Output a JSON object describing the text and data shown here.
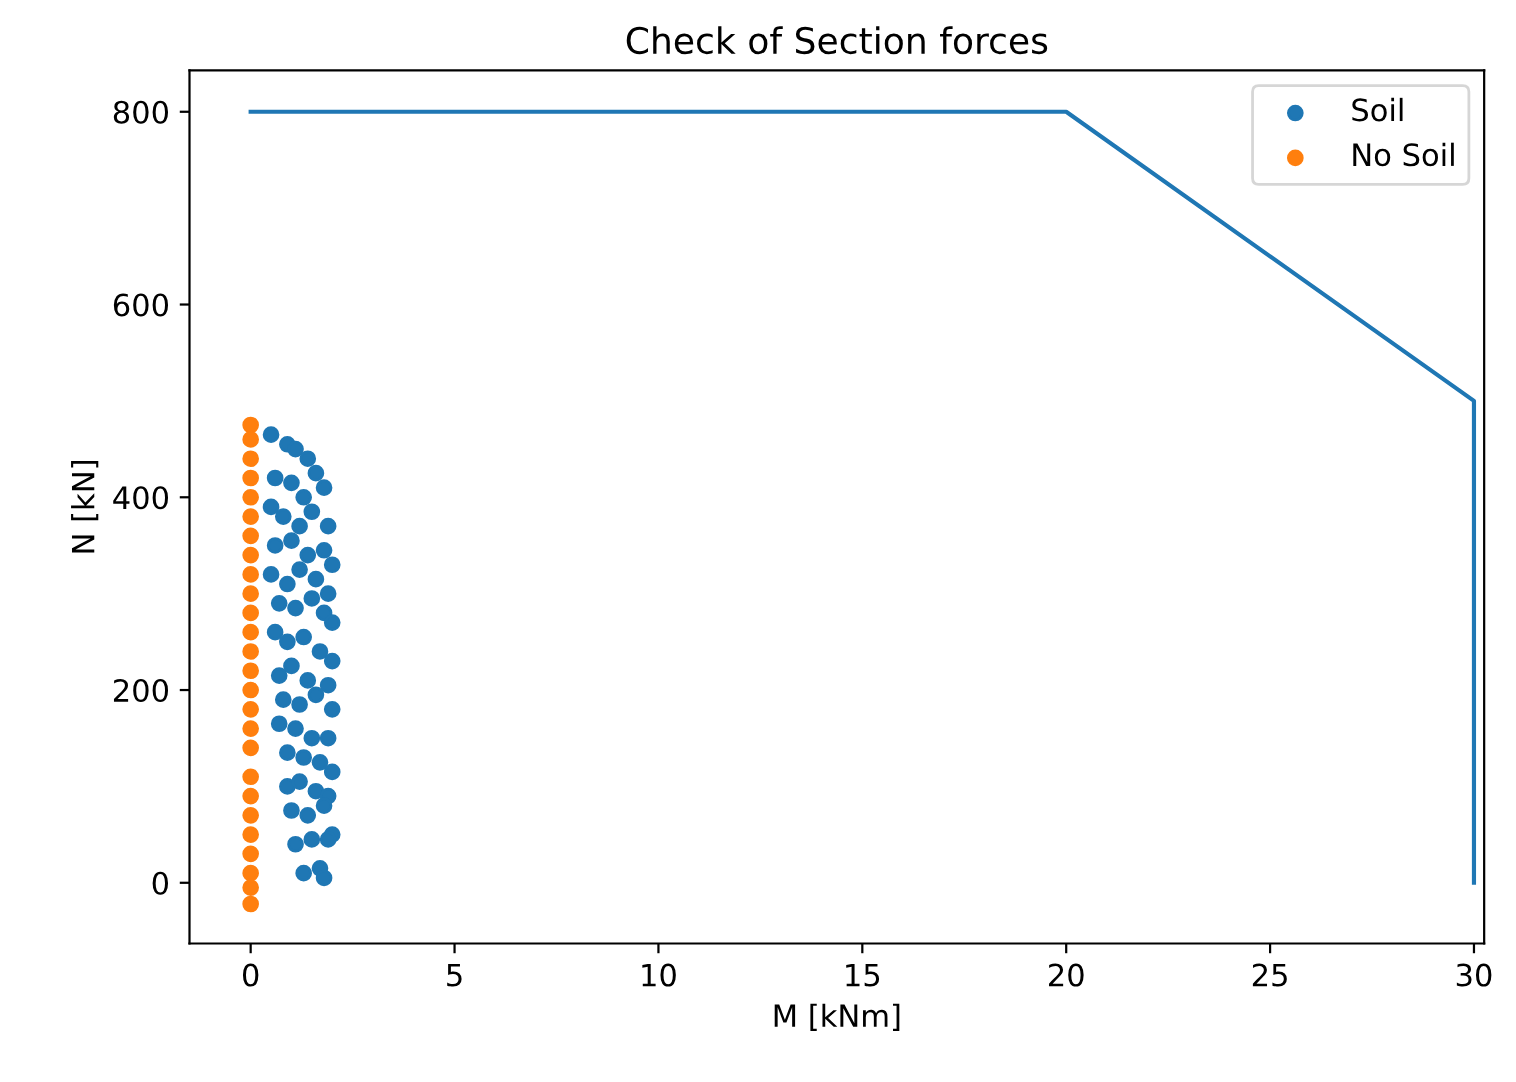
{
  "chart_data": {
    "type": "scatter",
    "title": "Check of Section forces",
    "xlabel": "M [kNm]",
    "ylabel": "N [kN]",
    "xlim": [
      -1.5,
      30.25
    ],
    "ylim": [
      -63,
      843
    ],
    "xticks": [
      0,
      5,
      10,
      15,
      20,
      25,
      30
    ],
    "yticks": [
      0,
      200,
      400,
      600,
      800
    ],
    "grid": false,
    "legend": "top right",
    "series": [
      {
        "type": "line",
        "marker": "none",
        "color": "#1f77b4",
        "x": [
          0,
          20,
          30,
          30
        ],
        "values": [
          800,
          800,
          500,
          0
        ]
      },
      {
        "name": "Soil",
        "marker": "circle",
        "color": "#1f77b4",
        "x": [
          0.5,
          0.9,
          1.1,
          1.4,
          1.6,
          1.8,
          0.6,
          1.0,
          1.3,
          1.5,
          0.5,
          0.8,
          1.2,
          1.9,
          0.6,
          1.0,
          1.4,
          1.8,
          2.0,
          0.5,
          0.9,
          1.2,
          1.6,
          1.9,
          0.7,
          1.1,
          1.5,
          1.8,
          2.0,
          0.6,
          0.9,
          1.3,
          1.7,
          2.0,
          0.7,
          1.0,
          1.4,
          1.9,
          0.8,
          1.2,
          1.6,
          2.0,
          0.7,
          1.1,
          1.5,
          1.9,
          0.9,
          1.3,
          1.7,
          2.0,
          0.9,
          1.2,
          1.6,
          1.9,
          1.0,
          1.4,
          1.8,
          2.0,
          1.1,
          1.5,
          1.9,
          1.7,
          1.3,
          1.8
        ],
        "values": [
          465,
          455,
          450,
          440,
          425,
          410,
          420,
          415,
          400,
          385,
          390,
          380,
          370,
          370,
          350,
          355,
          340,
          345,
          330,
          320,
          310,
          325,
          315,
          300,
          290,
          285,
          295,
          280,
          270,
          260,
          250,
          255,
          240,
          230,
          215,
          225,
          210,
          205,
          190,
          185,
          195,
          180,
          165,
          160,
          150,
          150,
          135,
          130,
          125,
          115,
          100,
          105,
          95,
          90,
          75,
          70,
          80,
          50,
          40,
          45,
          45,
          15,
          10,
          5
        ]
      },
      {
        "name": "No Soil",
        "marker": "circle",
        "color": "#ff7f0e",
        "x": [
          0,
          0,
          0,
          0,
          0,
          0,
          0,
          0,
          0,
          0,
          0,
          0,
          0,
          0,
          0,
          0,
          0,
          0,
          0,
          0,
          0,
          0,
          0,
          0,
          0,
          0
        ],
        "values": [
          475,
          460,
          440,
          420,
          400,
          380,
          360,
          340,
          320,
          300,
          280,
          260,
          240,
          220,
          200,
          180,
          160,
          140,
          110,
          90,
          70,
          50,
          30,
          10,
          -5,
          -22
        ]
      }
    ]
  }
}
